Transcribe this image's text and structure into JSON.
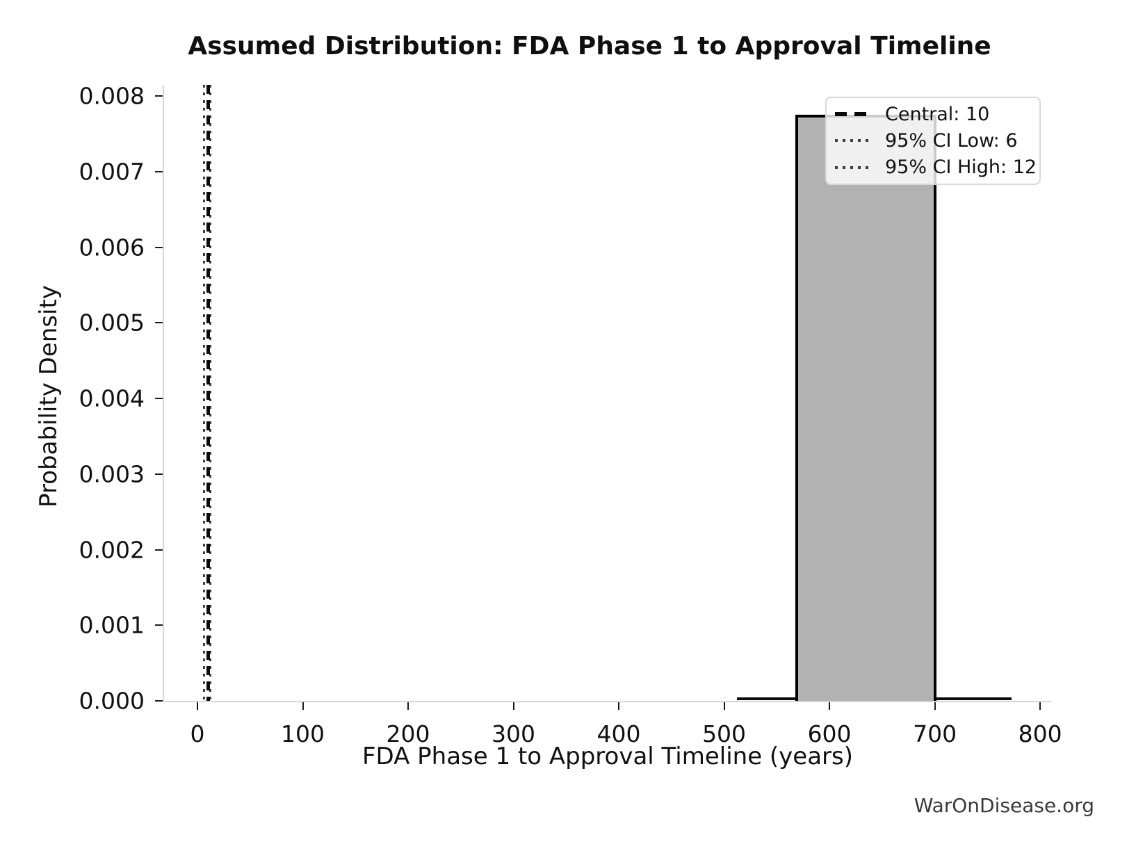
{
  "watermark": "WarOnDisease.org",
  "chart_data": {
    "type": "bar",
    "subtype": "histogram-density",
    "title": "Assumed Distribution: FDA Phase 1 to Approval Timeline",
    "xlabel": "FDA Phase 1 to Approval Timeline (years)",
    "ylabel": "Probability Density",
    "xlim": [
      -31.7,
      810.5
    ],
    "ylim": [
      0,
      0.00815
    ],
    "xticks": [
      0,
      100,
      200,
      300,
      400,
      500,
      600,
      700,
      800
    ],
    "xtick_labels": [
      "0",
      "100",
      "200",
      "300",
      "400",
      "500",
      "600",
      "700",
      "800"
    ],
    "yticks": [
      0,
      0.001,
      0.002,
      0.003,
      0.004,
      0.005,
      0.006,
      0.007,
      0.008
    ],
    "ytick_labels": [
      "0.000",
      "0.001",
      "0.002",
      "0.003",
      "0.004",
      "0.005",
      "0.006",
      "0.007",
      "0.008"
    ],
    "grid": false,
    "bars": [
      {
        "x_start": 569,
        "x_end": 700,
        "density": 0.00775
      }
    ],
    "density_line_extent": [
      512,
      773
    ],
    "vlines": [
      {
        "name": "ci-low",
        "value": 6,
        "style": "dotted",
        "label": "95% CI Low: 6"
      },
      {
        "name": "ci-high",
        "value": 12,
        "style": "dotted",
        "label": "95% CI High: 12"
      },
      {
        "name": "central",
        "value": 10,
        "style": "dashed",
        "label": "Central: 10"
      }
    ],
    "legend": {
      "position": "upper right",
      "entries": [
        {
          "style": "dashed",
          "label": "Central: 10"
        },
        {
          "style": "dotted",
          "label": "95% CI Low: 6"
        },
        {
          "style": "dotted",
          "label": "95% CI High: 12"
        }
      ]
    },
    "colors": {
      "bar_fill": "#b2b2b2",
      "bar_edge": "#000000",
      "line": "#0a0a0a",
      "dotted_line": "#3d3d3d",
      "spine": "#d6d6d6",
      "tick": "#1c1c1c",
      "text": "#111111",
      "watermark": "#3a3a3a"
    }
  }
}
